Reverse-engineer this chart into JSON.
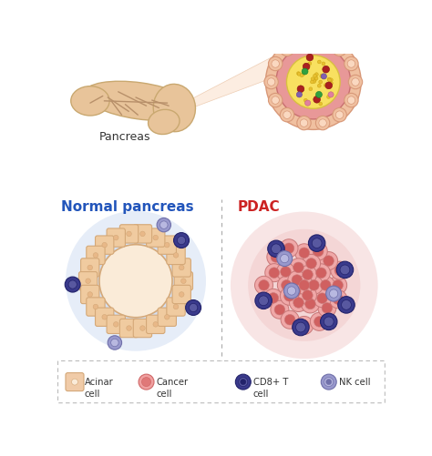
{
  "bg_color": "#ffffff",
  "title_normal": "Normal pancreas",
  "title_pdac": "PDAC",
  "title_normal_color": "#2255bb",
  "title_pdac_color": "#cc2222",
  "pancreas_label": "Pancreas",
  "legend_items": [
    {
      "label": "Acinar\ncell",
      "color": "#f0cba8",
      "border": "#d4a878",
      "inner": "#faebd8"
    },
    {
      "label": "Cancer\ncell",
      "color": "#f0a0a0",
      "border": "#d06868",
      "inner": "#e07878"
    },
    {
      "label": "CD8+ T\ncell",
      "color": "#3a3a8c",
      "border": "#22226a",
      "inner": "#5858a0"
    },
    {
      "label": "NK cell",
      "color": "#9898cc",
      "border": "#7070aa",
      "inner": "#b8b8e0"
    }
  ],
  "acinar_color": "#f0cba0",
  "acinar_border": "#d4a878",
  "acinar_inner": "#faebd8",
  "acinar_dot": "#e8b888",
  "normal_glow_color": "#b8ccec",
  "pdac_glow_color": "#eec0c0",
  "cancer_cell_color": "#f0a8a8",
  "cancer_cell_border": "#c87878",
  "cancer_cell_inner": "#d06060",
  "cd8_color": "#3a3a8c",
  "cd8_border": "#22226a",
  "cd8_inner": "#5858a0",
  "nk_color": "#9898cc",
  "nk_border": "#7070aa",
  "nk_inner": "#b8b8e0",
  "pancreas_color": "#e8c49a",
  "pancreas_edge": "#c9a870",
  "duct_color": "#b8906a",
  "trap_fill": "#fce8d8",
  "trap_edge": "#e8c0a0",
  "top_outer_fill": "#f0c0a0",
  "top_outer_edge": "#d89878",
  "top_pink_fill": "#e89898",
  "top_pink_edge": "#c87070",
  "top_yellow_fill": "#f8e060",
  "top_yellow_edge": "#d8c040",
  "top_acinar_fill": "#f0c0a0",
  "top_acinar_edge": "#d89878",
  "top_acinar_inner": "#fad8c0",
  "divider_color": "#aaaaaa"
}
